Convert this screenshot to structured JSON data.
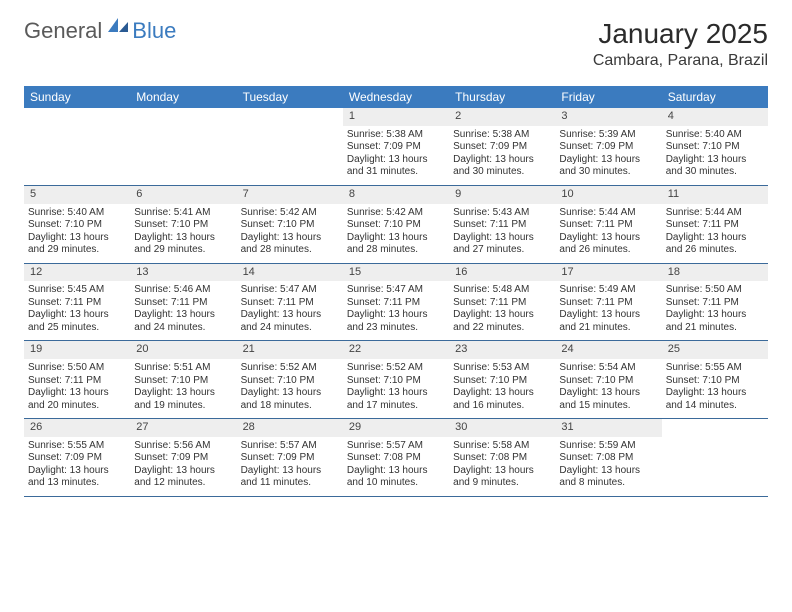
{
  "logo": {
    "text1": "General",
    "text2": "Blue"
  },
  "title": "January 2025",
  "location": "Cambara, Parana, Brazil",
  "colors": {
    "header_bg": "#3b7bbf",
    "header_text": "#ffffff",
    "daynum_bg": "#eeeeee",
    "week_border": "#3b6a9a",
    "body_text": "#333333"
  },
  "day_names": [
    "Sunday",
    "Monday",
    "Tuesday",
    "Wednesday",
    "Thursday",
    "Friday",
    "Saturday"
  ],
  "weeks": [
    [
      {
        "n": "",
        "lines": [
          "",
          "",
          "",
          ""
        ]
      },
      {
        "n": "",
        "lines": [
          "",
          "",
          "",
          ""
        ]
      },
      {
        "n": "",
        "lines": [
          "",
          "",
          "",
          ""
        ]
      },
      {
        "n": "1",
        "lines": [
          "Sunrise: 5:38 AM",
          "Sunset: 7:09 PM",
          "Daylight: 13 hours",
          "and 31 minutes."
        ]
      },
      {
        "n": "2",
        "lines": [
          "Sunrise: 5:38 AM",
          "Sunset: 7:09 PM",
          "Daylight: 13 hours",
          "and 30 minutes."
        ]
      },
      {
        "n": "3",
        "lines": [
          "Sunrise: 5:39 AM",
          "Sunset: 7:09 PM",
          "Daylight: 13 hours",
          "and 30 minutes."
        ]
      },
      {
        "n": "4",
        "lines": [
          "Sunrise: 5:40 AM",
          "Sunset: 7:10 PM",
          "Daylight: 13 hours",
          "and 30 minutes."
        ]
      }
    ],
    [
      {
        "n": "5",
        "lines": [
          "Sunrise: 5:40 AM",
          "Sunset: 7:10 PM",
          "Daylight: 13 hours",
          "and 29 minutes."
        ]
      },
      {
        "n": "6",
        "lines": [
          "Sunrise: 5:41 AM",
          "Sunset: 7:10 PM",
          "Daylight: 13 hours",
          "and 29 minutes."
        ]
      },
      {
        "n": "7",
        "lines": [
          "Sunrise: 5:42 AM",
          "Sunset: 7:10 PM",
          "Daylight: 13 hours",
          "and 28 minutes."
        ]
      },
      {
        "n": "8",
        "lines": [
          "Sunrise: 5:42 AM",
          "Sunset: 7:10 PM",
          "Daylight: 13 hours",
          "and 28 minutes."
        ]
      },
      {
        "n": "9",
        "lines": [
          "Sunrise: 5:43 AM",
          "Sunset: 7:11 PM",
          "Daylight: 13 hours",
          "and 27 minutes."
        ]
      },
      {
        "n": "10",
        "lines": [
          "Sunrise: 5:44 AM",
          "Sunset: 7:11 PM",
          "Daylight: 13 hours",
          "and 26 minutes."
        ]
      },
      {
        "n": "11",
        "lines": [
          "Sunrise: 5:44 AM",
          "Sunset: 7:11 PM",
          "Daylight: 13 hours",
          "and 26 minutes."
        ]
      }
    ],
    [
      {
        "n": "12",
        "lines": [
          "Sunrise: 5:45 AM",
          "Sunset: 7:11 PM",
          "Daylight: 13 hours",
          "and 25 minutes."
        ]
      },
      {
        "n": "13",
        "lines": [
          "Sunrise: 5:46 AM",
          "Sunset: 7:11 PM",
          "Daylight: 13 hours",
          "and 24 minutes."
        ]
      },
      {
        "n": "14",
        "lines": [
          "Sunrise: 5:47 AM",
          "Sunset: 7:11 PM",
          "Daylight: 13 hours",
          "and 24 minutes."
        ]
      },
      {
        "n": "15",
        "lines": [
          "Sunrise: 5:47 AM",
          "Sunset: 7:11 PM",
          "Daylight: 13 hours",
          "and 23 minutes."
        ]
      },
      {
        "n": "16",
        "lines": [
          "Sunrise: 5:48 AM",
          "Sunset: 7:11 PM",
          "Daylight: 13 hours",
          "and 22 minutes."
        ]
      },
      {
        "n": "17",
        "lines": [
          "Sunrise: 5:49 AM",
          "Sunset: 7:11 PM",
          "Daylight: 13 hours",
          "and 21 minutes."
        ]
      },
      {
        "n": "18",
        "lines": [
          "Sunrise: 5:50 AM",
          "Sunset: 7:11 PM",
          "Daylight: 13 hours",
          "and 21 minutes."
        ]
      }
    ],
    [
      {
        "n": "19",
        "lines": [
          "Sunrise: 5:50 AM",
          "Sunset: 7:11 PM",
          "Daylight: 13 hours",
          "and 20 minutes."
        ]
      },
      {
        "n": "20",
        "lines": [
          "Sunrise: 5:51 AM",
          "Sunset: 7:10 PM",
          "Daylight: 13 hours",
          "and 19 minutes."
        ]
      },
      {
        "n": "21",
        "lines": [
          "Sunrise: 5:52 AM",
          "Sunset: 7:10 PM",
          "Daylight: 13 hours",
          "and 18 minutes."
        ]
      },
      {
        "n": "22",
        "lines": [
          "Sunrise: 5:52 AM",
          "Sunset: 7:10 PM",
          "Daylight: 13 hours",
          "and 17 minutes."
        ]
      },
      {
        "n": "23",
        "lines": [
          "Sunrise: 5:53 AM",
          "Sunset: 7:10 PM",
          "Daylight: 13 hours",
          "and 16 minutes."
        ]
      },
      {
        "n": "24",
        "lines": [
          "Sunrise: 5:54 AM",
          "Sunset: 7:10 PM",
          "Daylight: 13 hours",
          "and 15 minutes."
        ]
      },
      {
        "n": "25",
        "lines": [
          "Sunrise: 5:55 AM",
          "Sunset: 7:10 PM",
          "Daylight: 13 hours",
          "and 14 minutes."
        ]
      }
    ],
    [
      {
        "n": "26",
        "lines": [
          "Sunrise: 5:55 AM",
          "Sunset: 7:09 PM",
          "Daylight: 13 hours",
          "and 13 minutes."
        ]
      },
      {
        "n": "27",
        "lines": [
          "Sunrise: 5:56 AM",
          "Sunset: 7:09 PM",
          "Daylight: 13 hours",
          "and 12 minutes."
        ]
      },
      {
        "n": "28",
        "lines": [
          "Sunrise: 5:57 AM",
          "Sunset: 7:09 PM",
          "Daylight: 13 hours",
          "and 11 minutes."
        ]
      },
      {
        "n": "29",
        "lines": [
          "Sunrise: 5:57 AM",
          "Sunset: 7:08 PM",
          "Daylight: 13 hours",
          "and 10 minutes."
        ]
      },
      {
        "n": "30",
        "lines": [
          "Sunrise: 5:58 AM",
          "Sunset: 7:08 PM",
          "Daylight: 13 hours",
          "and 9 minutes."
        ]
      },
      {
        "n": "31",
        "lines": [
          "Sunrise: 5:59 AM",
          "Sunset: 7:08 PM",
          "Daylight: 13 hours",
          "and 8 minutes."
        ]
      },
      {
        "n": "",
        "lines": [
          "",
          "",
          "",
          ""
        ]
      }
    ]
  ]
}
